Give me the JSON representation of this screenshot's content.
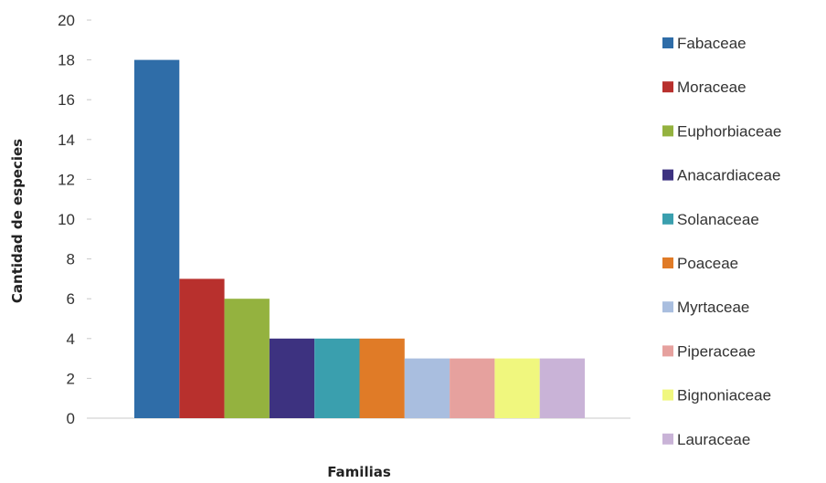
{
  "chart_data": {
    "type": "bar",
    "categories": [
      "Fabaceae",
      "Moraceae",
      "Euphorbiaceae",
      "Anacardiaceae",
      "Solanaceae",
      "Poaceae",
      "Myrtaceae",
      "Piperaceae",
      "Bignoniaceae",
      "Lauraceae"
    ],
    "values": [
      18,
      7,
      6,
      4,
      4,
      4,
      3,
      3,
      3,
      3
    ],
    "colors": [
      "#2f6da8",
      "#b8302d",
      "#94b23f",
      "#3d3280",
      "#3a9fae",
      "#e07b27",
      "#a9bedf",
      "#e6a19e",
      "#f0f77e",
      "#c9b3d7"
    ],
    "xlabel": "Familias",
    "ylabel": "Cantidad de especies",
    "ylim": [
      0,
      20
    ],
    "yticks": [
      0,
      2,
      4,
      6,
      8,
      10,
      12,
      14,
      16,
      18,
      20
    ],
    "grid": false,
    "legend_position": "right"
  }
}
